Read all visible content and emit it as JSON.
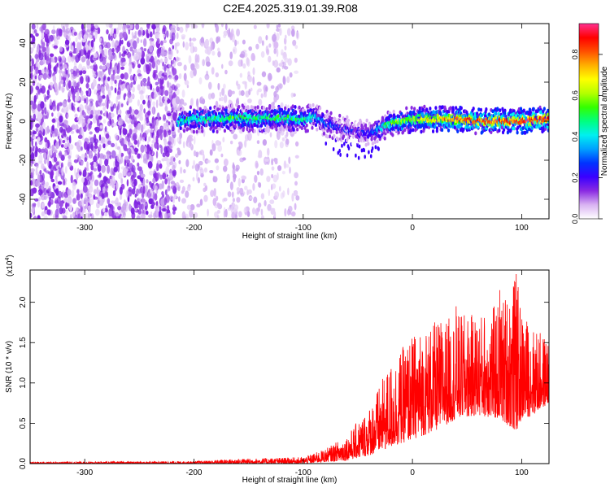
{
  "title": "C2E4.2025.319.01.39.R08",
  "chart_data": [
    {
      "type": "heatmap",
      "name": "spectrogram",
      "xlabel": "Height of straight line (km)",
      "ylabel": "Frequency (Hz)",
      "xlim": [
        -350,
        125
      ],
      "ylim": [
        -50,
        50
      ],
      "xticks": [
        -300,
        -200,
        -100,
        0,
        100
      ],
      "yticks": [
        -40,
        -20,
        0,
        20,
        40
      ],
      "colorbar": {
        "label": "Normalized spectral amplitude",
        "range": [
          0,
          0.95
        ],
        "ticks": [
          0.0,
          0.2,
          0.4,
          0.6,
          0.8
        ],
        "colors": [
          "#ffffff",
          "#d9b3f2",
          "#8a2be2",
          "#3a00ff",
          "#0033ff",
          "#00a0ff",
          "#00f0f0",
          "#00ff7f",
          "#33ff00",
          "#b4ff00",
          "#ffff00",
          "#ffb000",
          "#ff5000",
          "#ff0000",
          "#ff3090"
        ]
      },
      "ridge": {
        "x": [
          -215,
          -200,
          -180,
          -160,
          -140,
          -120,
          -100,
          -90,
          -80,
          -70,
          -60,
          -50,
          -40,
          -30,
          -20,
          -10,
          0,
          20,
          40,
          60,
          80,
          100,
          125
        ],
        "y": [
          0,
          1,
          1,
          2,
          1,
          2,
          1,
          2,
          -1,
          -3,
          -4,
          -6,
          -6,
          -4,
          -1,
          0,
          1,
          1,
          1,
          0,
          0,
          0,
          1
        ],
        "intensity": [
          0.45,
          0.5,
          0.52,
          0.55,
          0.52,
          0.55,
          0.5,
          0.45,
          0.3,
          0.25,
          0.22,
          0.2,
          0.25,
          0.4,
          0.55,
          0.6,
          0.65,
          0.75,
          0.82,
          0.88,
          0.9,
          0.92,
          0.9
        ]
      },
      "noise_zones": [
        {
          "x": [
            -350,
            -215
          ],
          "density": 1.0
        },
        {
          "x": [
            -215,
            -105
          ],
          "density": 0.35
        }
      ]
    },
    {
      "type": "line",
      "name": "snr",
      "xlabel": "Height of straight line (km)",
      "ylabel": "SNR (10 * v/v)",
      "scale_label": "(x10",
      "scale_exponent": "4",
      "scale_suffix": ")",
      "color": "#ff0000",
      "xlim": [
        -350,
        125
      ],
      "ylim": [
        0,
        2.4
      ],
      "xticks": [
        -300,
        -200,
        -100,
        0,
        100
      ],
      "yticks": [
        0.0,
        0.5,
        1.0,
        1.5,
        2.0
      ],
      "envelope": {
        "x": [
          -350,
          -200,
          -160,
          -100,
          -80,
          -60,
          -40,
          -20,
          0,
          20,
          40,
          60,
          80,
          95,
          100,
          110,
          125
        ],
        "lower": [
          0.0,
          0.0,
          0.0,
          0.0,
          0.02,
          0.04,
          0.1,
          0.2,
          0.3,
          0.4,
          0.55,
          0.6,
          0.55,
          0.4,
          0.55,
          0.6,
          0.75
        ],
        "upper": [
          0.02,
          0.03,
          0.06,
          0.08,
          0.18,
          0.35,
          0.7,
          1.25,
          1.6,
          1.75,
          1.85,
          1.85,
          2.0,
          2.35,
          1.9,
          1.7,
          1.55
        ]
      },
      "peaks": [
        {
          "x": 95,
          "y": 2.35
        },
        {
          "x": 80,
          "y": 2.15
        },
        {
          "x": 40,
          "y": 1.95
        }
      ]
    }
  ]
}
